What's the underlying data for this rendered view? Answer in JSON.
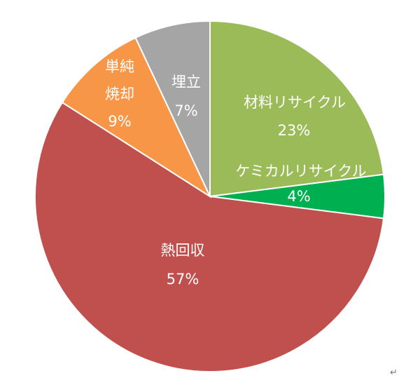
{
  "chart_data": {
    "type": "pie",
    "slices": [
      {
        "name": "材料リサイクル",
        "percent_label": "23%",
        "value": 23,
        "color": "#9bbb59"
      },
      {
        "name": "ケミカルリサイクル",
        "percent_label": "4%",
        "value": 4,
        "color": "#00b050"
      },
      {
        "name": "熱回収",
        "percent_label": "57%",
        "value": 57,
        "color": "#c0504d"
      },
      {
        "name": "単純焼却",
        "name_lines": [
          "単純",
          "焼却"
        ],
        "percent_label": "9%",
        "value": 9,
        "color": "#f79646"
      },
      {
        "name": "埋立",
        "percent_label": "7%",
        "value": 7,
        "color": "#a5a5a5"
      }
    ],
    "start_angle": "12 o'clock",
    "direction": "clockwise",
    "legend": "none",
    "title": ""
  },
  "page_mark": "↵"
}
